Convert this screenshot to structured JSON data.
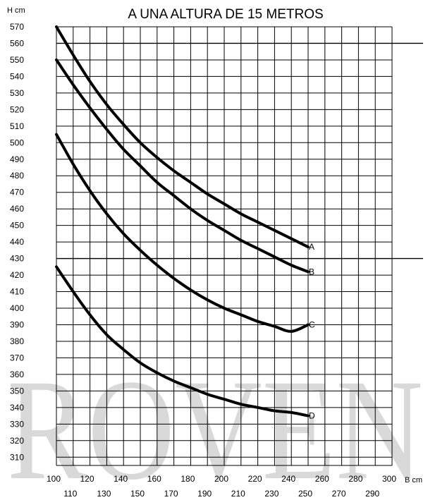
{
  "chart_data": {
    "type": "line",
    "title": "A UNA ALTURA DE 15 METROS",
    "ylabel": "H cm",
    "xlabel": "B cm",
    "watermark": "ROVEN",
    "xlim": [
      100,
      300
    ],
    "ylim": [
      305,
      570
    ],
    "x_ticks_row1": [
      100,
      120,
      140,
      160,
      180,
      200,
      220,
      240,
      260,
      280,
      300
    ],
    "x_ticks_row2": [
      110,
      130,
      150,
      170,
      190,
      210,
      230,
      250,
      270,
      290
    ],
    "x_ticks_row2_labels": [
      "110",
      "130",
      "150",
      "170",
      "190",
      "210",
      "230",
      "250",
      "270",
      "290"
    ],
    "y_ticks": [
      570,
      560,
      550,
      540,
      530,
      520,
      510,
      500,
      490,
      480,
      470,
      460,
      450,
      440,
      430,
      420,
      410,
      400,
      390,
      380,
      370,
      360,
      350,
      340,
      330,
      320,
      310
    ],
    "reference_lines": [
      560,
      430
    ],
    "grid": true,
    "series": [
      {
        "name": "A",
        "x": [
          100,
          110,
          120,
          130,
          140,
          150,
          160,
          170,
          180,
          190,
          200,
          210,
          220,
          230,
          240,
          250
        ],
        "y": [
          570,
          553,
          537,
          523,
          511,
          500,
          491,
          483,
          476,
          469,
          463,
          457,
          452,
          447,
          442,
          437
        ]
      },
      {
        "name": "B",
        "x": [
          100,
          110,
          120,
          130,
          140,
          150,
          160,
          170,
          180,
          190,
          200,
          210,
          220,
          230,
          240,
          250
        ],
        "y": [
          550,
          535,
          521,
          508,
          496,
          486,
          476,
          468,
          460,
          453,
          447,
          441,
          436,
          431,
          426,
          422
        ]
      },
      {
        "name": "C",
        "x": [
          100,
          110,
          120,
          130,
          140,
          150,
          160,
          170,
          180,
          190,
          200,
          210,
          220,
          230,
          240,
          250
        ],
        "y": [
          505,
          487,
          471,
          457,
          445,
          435,
          426,
          418,
          411,
          405,
          400,
          396,
          392,
          389,
          386,
          390
        ]
      },
      {
        "name": "D",
        "x": [
          100,
          110,
          120,
          130,
          140,
          150,
          160,
          170,
          180,
          190,
          200,
          210,
          220,
          230,
          240,
          250
        ],
        "y": [
          425,
          410,
          396,
          384,
          375,
          367,
          361,
          356,
          352,
          348,
          345,
          342,
          340,
          338,
          337,
          335
        ]
      }
    ]
  }
}
